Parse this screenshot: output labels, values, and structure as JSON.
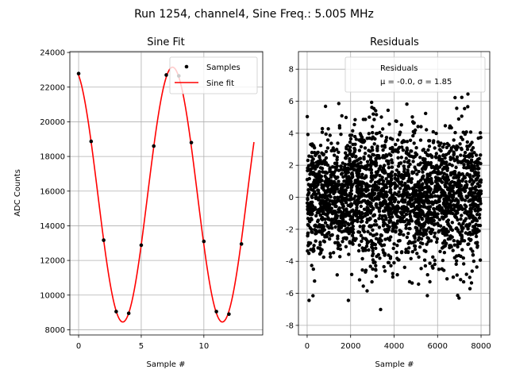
{
  "suptitle": "Run 1254, channel4, Sine Freq.: 5.005 MHz",
  "colors": {
    "fit": "#ff0000",
    "samples": "#000000",
    "residuals": "#000000",
    "grid": "#b0b0b0"
  },
  "chart_data": [
    {
      "type": "line",
      "title": "Sine Fit",
      "xlabel": "Sample #",
      "ylabel": "ADC Counts",
      "xlim": [
        -0.7,
        14.7
      ],
      "ylim": [
        7700,
        24050
      ],
      "xticks": [
        0,
        5,
        10
      ],
      "yticks": [
        8000,
        10000,
        12000,
        14000,
        16000,
        18000,
        20000,
        22000,
        24000
      ],
      "grid": true,
      "legend_position": "top-right",
      "series": [
        {
          "name": "Samples",
          "style": "scatter",
          "x": [
            0,
            1,
            2,
            3,
            4,
            5,
            6,
            7,
            8,
            9,
            10,
            11,
            12,
            13
          ],
          "y": [
            22780,
            18870,
            13170,
            9050,
            8950,
            12880,
            18600,
            22700,
            22650,
            18800,
            13100,
            9050,
            8900,
            12950
          ]
        },
        {
          "name": "Sine fit",
          "style": "line",
          "model": {
            "offset": 15800,
            "amplitude": 7350,
            "period": 7.95,
            "peak_at": 7.5,
            "x_range": [
              0,
              14
            ]
          }
        }
      ]
    },
    {
      "type": "scatter",
      "title": "Residuals",
      "xlabel": "Sample #",
      "ylabel": "",
      "xlim": [
        -400,
        8400
      ],
      "ylim": [
        -8.6,
        9.1
      ],
      "xticks": [
        0,
        2000,
        4000,
        6000,
        8000
      ],
      "yticks": [
        -8,
        -6,
        -4,
        -2,
        0,
        2,
        4,
        6,
        8
      ],
      "grid": true,
      "legend_position": "top-right",
      "series": [
        {
          "name": "Residuals",
          "legend_stats": "μ = -0.0, σ = 1.85",
          "mean": 0.0,
          "std": 1.85,
          "n_points": 8000,
          "x_range": [
            0,
            7999
          ]
        }
      ]
    }
  ]
}
